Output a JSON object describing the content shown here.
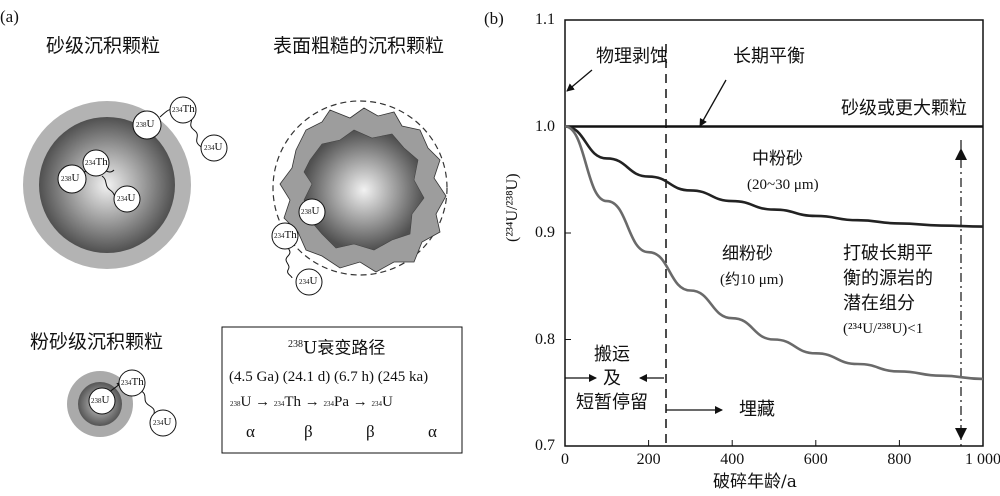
{
  "panel_a": {
    "label": "(a)",
    "sand_title": "砂级沉积颗粒",
    "rough_title": "表面粗糙的沉积颗粒",
    "silt_title": "粉砂级沉积颗粒",
    "nuclides": {
      "u238": "238",
      "th234": "234",
      "u234": "234",
      "u_sym": "U",
      "th_sym": "Th"
    },
    "decay_box": {
      "title_sup": "238",
      "title_rest": "U衰变路径",
      "half_lives": "(4.5 Ga) (24.1 d) (6.7 h) (245 ka)",
      "chain": [
        {
          "sup": "238",
          "sym": "U"
        },
        {
          "sup": "234",
          "sym": "Th"
        },
        {
          "sup": "234",
          "sym": "Pa"
        },
        {
          "sup": "234",
          "sym": "U"
        }
      ],
      "arrow": "→",
      "decays": [
        "α",
        "β",
        "β",
        "α"
      ]
    }
  },
  "panel_b": {
    "label": "(b)",
    "ylabel": "(²³⁴U/²³⁸U)",
    "xlabel": "破碎年龄/a",
    "annotations": {
      "physical_weathering": "物理剥蚀",
      "secular_equilibrium": "长期平衡",
      "sand_or_larger": "砂级或更大颗粒",
      "medium_silt": "中粉砂",
      "medium_silt_size": "(20~30 μm)",
      "fine_silt": "细粉砂",
      "fine_silt_size": "(约10 μm)",
      "break_eq_1": "打破长期平",
      "break_eq_2": "衡的源岩的",
      "break_eq_3": "潜在组分",
      "break_eq_4": "(²³⁴U/²³⁸U)<1",
      "transport_1": "搬运",
      "transport_2": "及",
      "transport_3": "短暂停留",
      "burial": "埋藏"
    },
    "colors": {
      "sand": "#111111",
      "medium_silt": "#222222",
      "fine_silt": "#6a6a6a"
    }
  },
  "chart_data": {
    "type": "line",
    "xlabel": "破碎年龄/a",
    "ylabel": "(²³⁴U/²³⁸U)",
    "xlim": [
      0,
      1000
    ],
    "ylim": [
      0.7,
      1.1
    ],
    "x_ticks": [
      "0",
      "200",
      "400",
      "600",
      "800",
      "1 000"
    ],
    "y_ticks": [
      "0.7",
      "0.8",
      "0.9",
      "1.0",
      "1.1"
    ],
    "grid": false,
    "x": [
      0,
      100,
      200,
      300,
      400,
      500,
      600,
      700,
      800,
      900,
      1000
    ],
    "series": [
      {
        "name": "砂级或更大颗粒",
        "values": [
          1.0,
          1.0,
          1.0,
          1.0,
          1.0,
          1.0,
          1.0,
          1.0,
          1.0,
          1.0,
          1.0
        ]
      },
      {
        "name": "中粉砂",
        "values": [
          1.0,
          0.97,
          0.953,
          0.94,
          0.93,
          0.922,
          0.916,
          0.912,
          0.909,
          0.907,
          0.906
        ]
      },
      {
        "name": "细粉砂",
        "values": [
          1.0,
          0.93,
          0.882,
          0.846,
          0.82,
          0.8,
          0.787,
          0.777,
          0.77,
          0.766,
          0.763
        ]
      }
    ]
  }
}
